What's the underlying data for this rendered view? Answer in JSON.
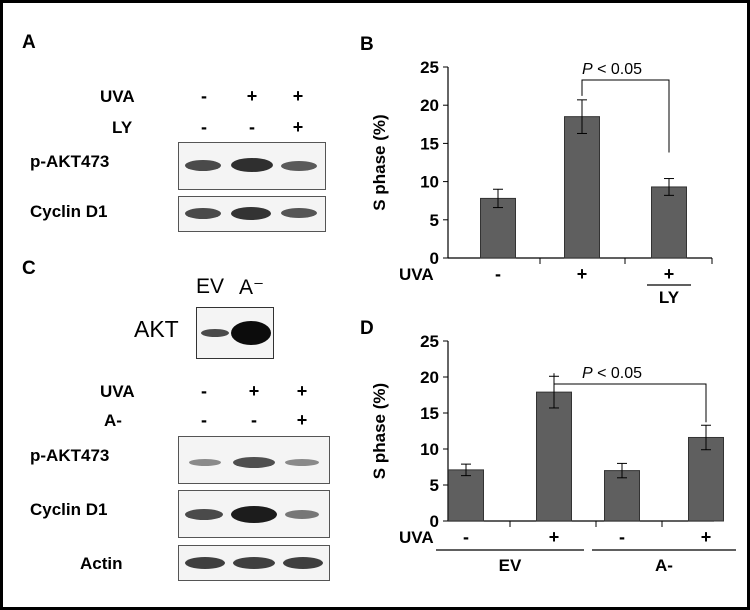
{
  "figure": {
    "panel_a": {
      "letter": "A",
      "conditions": [
        {
          "label": "UVA",
          "signs": [
            "-",
            "+",
            "+"
          ]
        },
        {
          "label": "LY",
          "signs": [
            "-",
            "-",
            "+"
          ]
        }
      ],
      "blots": [
        {
          "label": "p-AKT473"
        },
        {
          "label": "Cyclin D1"
        }
      ]
    },
    "panel_c": {
      "letter": "C",
      "inset_lanes": [
        "EV",
        "A⁻"
      ],
      "inset_label": "AKT",
      "conditions": [
        {
          "label": "UVA",
          "signs": [
            "-",
            "+",
            "+"
          ]
        },
        {
          "label": "A-",
          "signs": [
            "-",
            "-",
            "+"
          ]
        }
      ],
      "blots": [
        {
          "label": "p-AKT473"
        },
        {
          "label": "Cyclin D1"
        },
        {
          "label": "Actin"
        }
      ]
    }
  },
  "chart_data": [
    {
      "panel": "B",
      "type": "bar",
      "ylabel": "S phase (%)",
      "ylim": [
        0,
        25
      ],
      "yticks": [
        0,
        5,
        10,
        15,
        20,
        25
      ],
      "grid": false,
      "bar_color": "#5f5f5f",
      "categories": [
        "-",
        "+",
        "+ LY"
      ],
      "values": [
        7.8,
        18.5,
        9.3
      ],
      "errors": [
        1.2,
        2.2,
        1.1
      ],
      "row_label": "UVA",
      "tick_labels": [
        "-",
        "+",
        "+"
      ],
      "sub_labels": [
        "",
        "",
        "LY"
      ],
      "significance": {
        "text": "P < 0.05",
        "between": [
          1,
          2
        ]
      }
    },
    {
      "panel": "D",
      "type": "bar",
      "ylabel": "S phase (%)",
      "ylim": [
        0,
        25
      ],
      "yticks": [
        0,
        5,
        10,
        15,
        20,
        25
      ],
      "grid": false,
      "bar_color": "#5f5f5f",
      "categories": [
        "EV -",
        "EV +",
        "A- -",
        "A- +"
      ],
      "values": [
        7.1,
        17.9,
        7.0,
        11.6
      ],
      "errors": [
        0.8,
        2.2,
        1.0,
        1.7
      ],
      "row_label": "UVA",
      "tick_labels": [
        "-",
        "+",
        "-",
        "+"
      ],
      "groups": [
        {
          "label": "EV",
          "bars": [
            0,
            1
          ]
        },
        {
          "label": "A-",
          "bars": [
            2,
            3
          ]
        }
      ],
      "significance": {
        "text": "P < 0.05",
        "between": [
          1,
          3
        ]
      }
    }
  ]
}
